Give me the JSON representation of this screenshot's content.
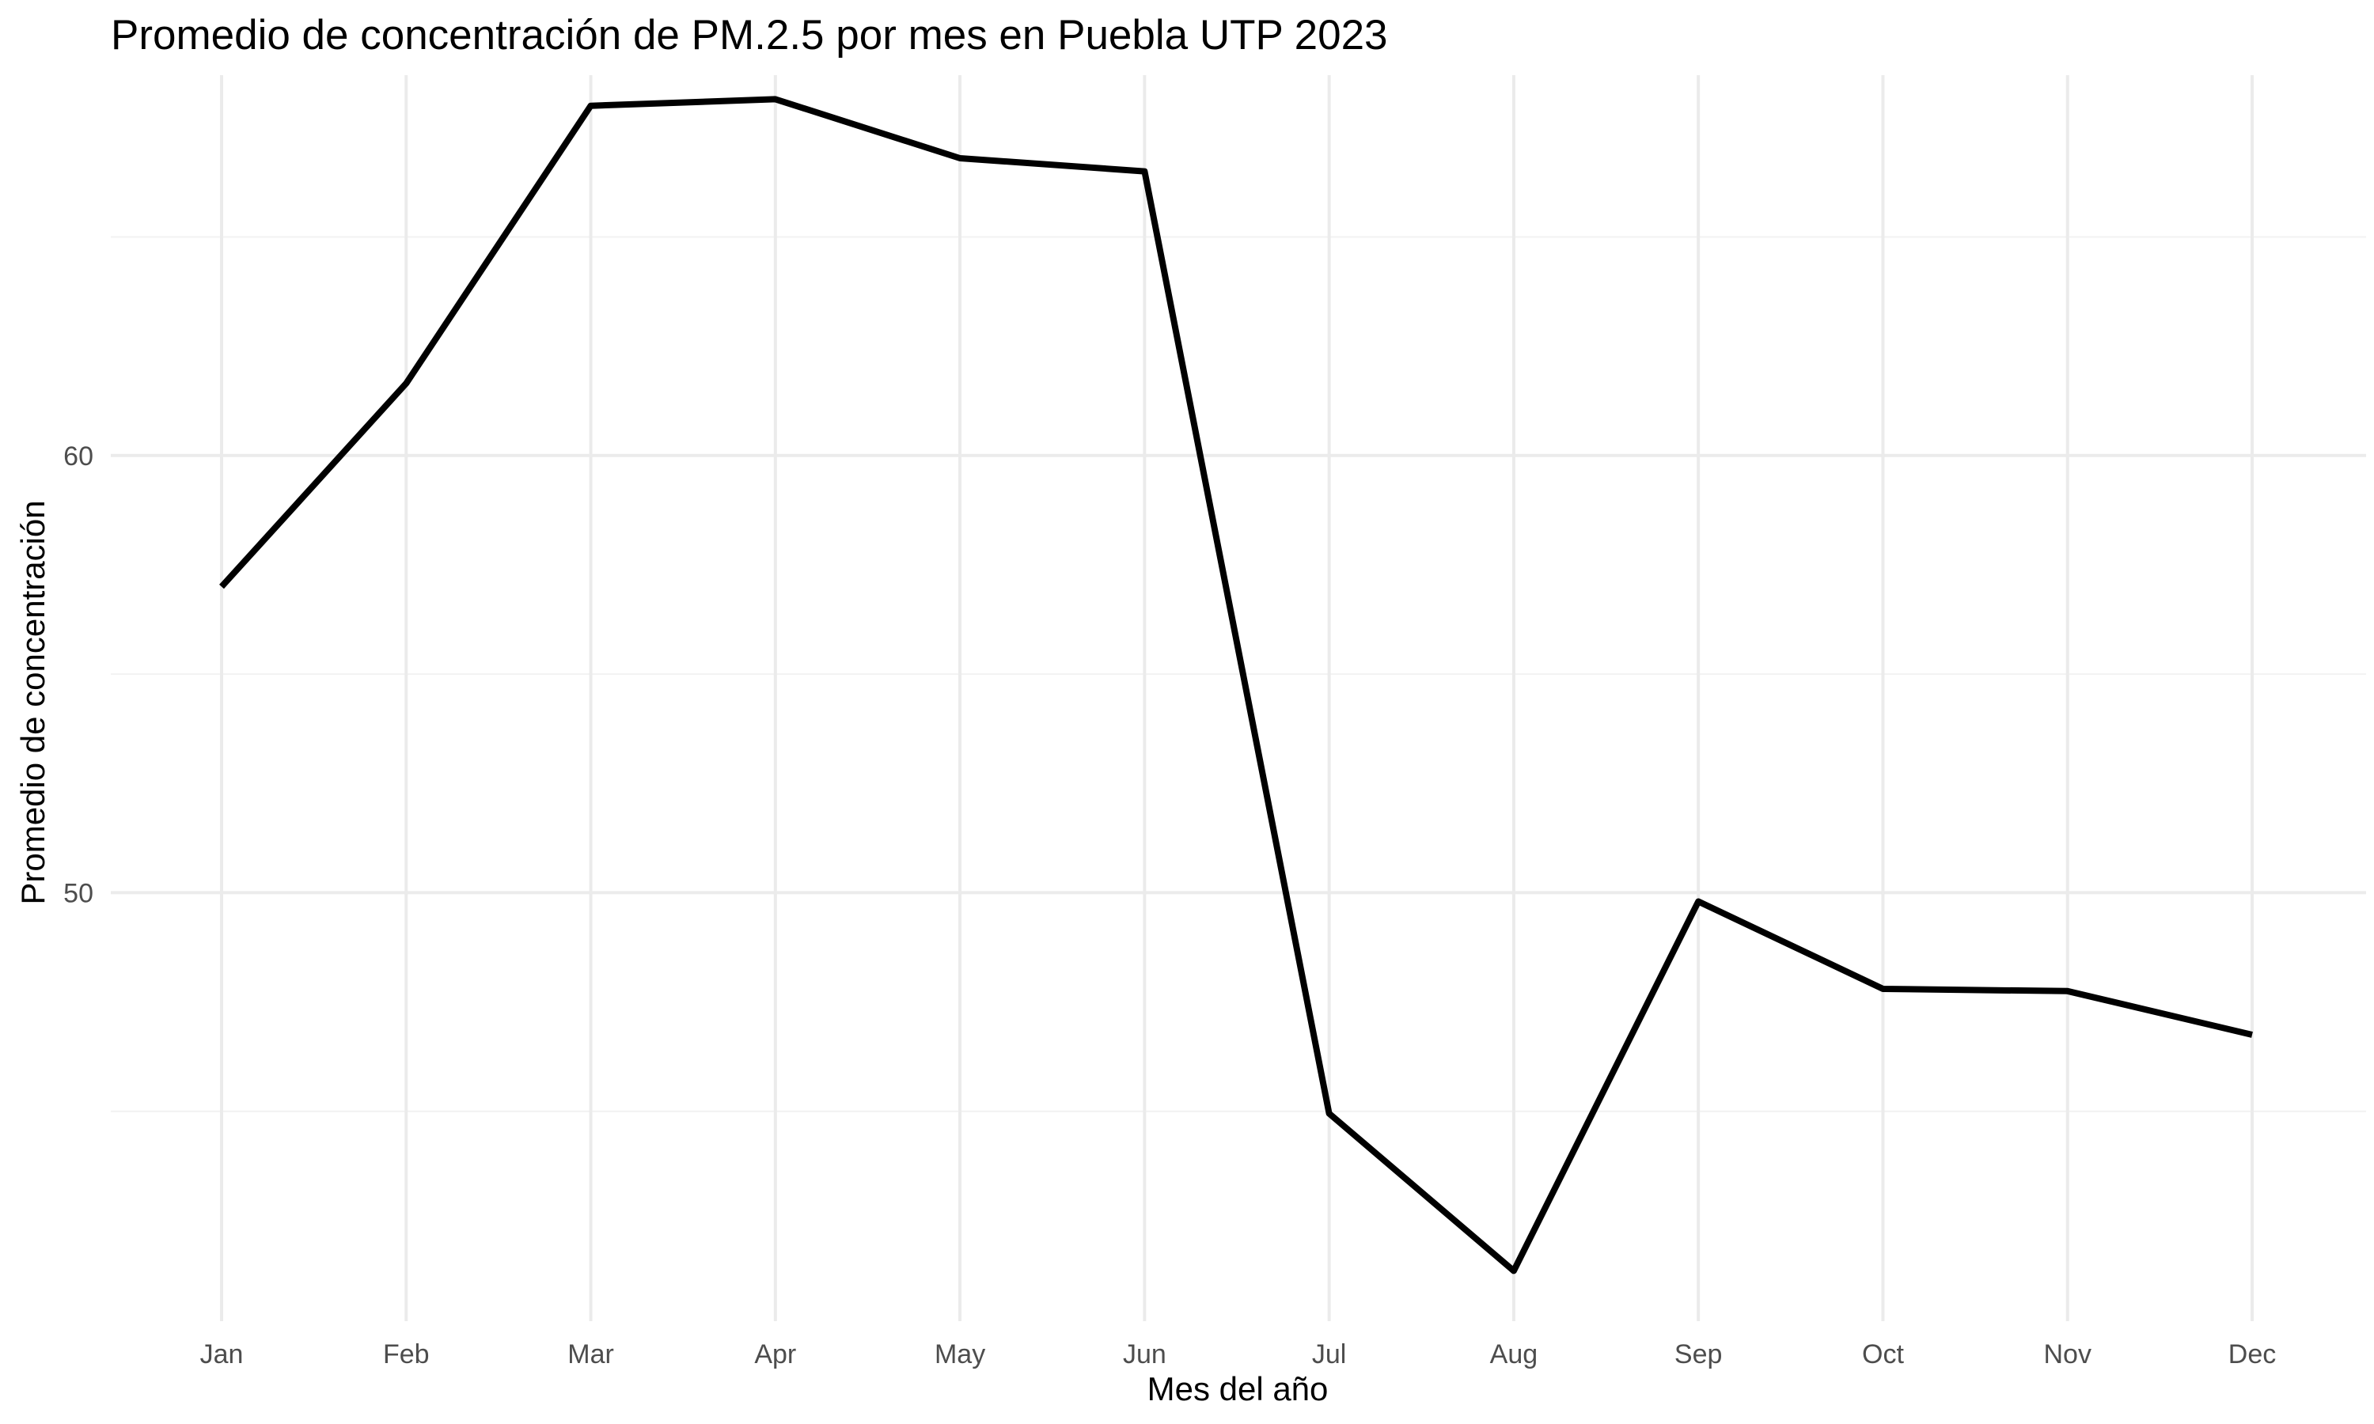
{
  "chart_data": {
    "type": "line",
    "title": "Promedio de concentración de PM.2.5 por mes en Puebla UTP 2023",
    "xlabel": "Mes del año",
    "ylabel": "Promedio de concentración",
    "categories": [
      "Jan",
      "Feb",
      "Mar",
      "Apr",
      "May",
      "Jun",
      "Jul",
      "Aug",
      "Sep",
      "Oct",
      "Nov",
      "Dec"
    ],
    "series": [
      {
        "values": [
          57.0,
          61.65,
          68.0,
          68.15,
          66.8,
          66.5,
          44.95,
          41.35,
          49.8,
          47.8,
          47.75,
          46.75
        ],
        "color": "#000000"
      }
    ],
    "ylim": [
      40.2,
      68.7
    ],
    "yticks": [
      50,
      60
    ],
    "yticks_minor": [
      45,
      55,
      65
    ],
    "ytick_labels": [
      "50",
      "60"
    ],
    "grid": true,
    "legend": "none"
  }
}
